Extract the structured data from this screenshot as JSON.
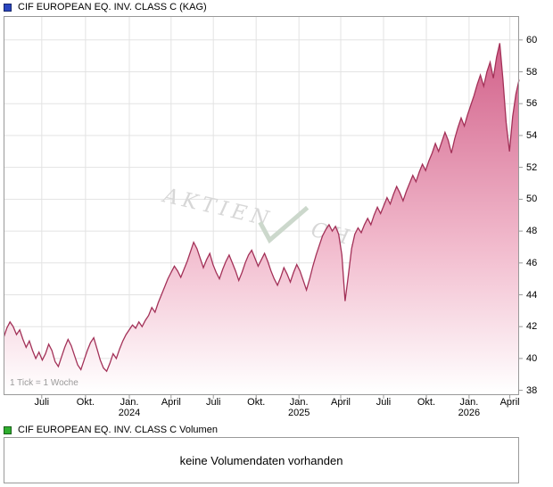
{
  "header": {
    "title": "CIF EUROPEAN EQ. INV. CLASS C (KAG)",
    "marker_color": "#2a46c0"
  },
  "volume": {
    "title": "CIF EUROPEAN EQ. INV. CLASS C Volumen",
    "message": "keine Volumendaten vorhanden",
    "marker_color": "#2fae2f"
  },
  "chart_data": {
    "type": "area",
    "title": "CIF EUROPEAN EQ. INV. CLASS C (KAG)",
    "tick_note": "1 Tick = 1 Woche",
    "x_unit": "week",
    "ylim": [
      37.7,
      61.5
    ],
    "yticks": [
      38,
      40,
      42,
      44,
      46,
      48,
      50,
      52,
      54,
      56,
      58,
      60
    ],
    "x_axis_labels": [
      {
        "label": "Juli",
        "f": 0.074
      },
      {
        "label": "Okt.",
        "f": 0.159
      },
      {
        "label": "Jan.",
        "year": "2024",
        "f": 0.244
      },
      {
        "label": "April",
        "f": 0.325
      },
      {
        "label": "Juli",
        "f": 0.407
      },
      {
        "label": "Okt.",
        "f": 0.49
      },
      {
        "label": "Jan.",
        "year": "2025",
        "f": 0.573
      },
      {
        "label": "April",
        "f": 0.654
      },
      {
        "label": "Juli",
        "f": 0.737
      },
      {
        "label": "Okt.",
        "f": 0.82
      },
      {
        "label": "Jan.",
        "year": "2026",
        "f": 0.903
      },
      {
        "label": "April",
        "f": 0.982
      }
    ],
    "watermark": [
      "AKTIEN",
      "CHECK"
    ],
    "values": [
      41.3,
      41.9,
      42.3,
      42.0,
      41.5,
      41.8,
      41.2,
      40.7,
      41.1,
      40.5,
      40.0,
      40.4,
      39.9,
      40.3,
      40.9,
      40.5,
      39.8,
      39.5,
      40.1,
      40.7,
      41.2,
      40.8,
      40.2,
      39.6,
      39.3,
      39.9,
      40.5,
      41.0,
      41.3,
      40.6,
      39.9,
      39.4,
      39.2,
      39.7,
      40.3,
      40.0,
      40.6,
      41.1,
      41.5,
      41.8,
      42.1,
      41.9,
      42.3,
      42.0,
      42.4,
      42.7,
      43.2,
      42.9,
      43.5,
      44.0,
      44.5,
      45.0,
      45.4,
      45.8,
      45.5,
      45.1,
      45.6,
      46.1,
      46.7,
      47.3,
      46.9,
      46.3,
      45.7,
      46.2,
      46.6,
      45.9,
      45.4,
      45.0,
      45.6,
      46.1,
      46.5,
      46.0,
      45.5,
      44.9,
      45.4,
      46.0,
      46.5,
      46.8,
      46.3,
      45.8,
      46.2,
      46.6,
      46.1,
      45.5,
      45.0,
      44.6,
      45.1,
      45.7,
      45.3,
      44.8,
      45.4,
      45.9,
      45.5,
      44.9,
      44.3,
      45.0,
      45.8,
      46.5,
      47.1,
      47.7,
      48.1,
      48.4,
      48.0,
      48.3,
      47.8,
      46.5,
      43.6,
      45.2,
      46.9,
      47.8,
      48.2,
      47.9,
      48.4,
      48.8,
      48.4,
      49.0,
      49.5,
      49.1,
      49.6,
      50.1,
      49.7,
      50.3,
      50.8,
      50.4,
      49.9,
      50.5,
      51.0,
      51.5,
      51.1,
      51.7,
      52.2,
      51.8,
      52.4,
      52.9,
      53.5,
      53.0,
      53.6,
      54.2,
      53.7,
      52.9,
      53.8,
      54.5,
      55.1,
      54.6,
      55.3,
      55.9,
      56.5,
      57.2,
      57.8,
      57.1,
      58.0,
      58.6,
      57.6,
      58.9,
      59.8,
      57.5,
      54.8,
      53.0,
      55.2,
      56.6,
      57.5
    ],
    "colors": {
      "line": "#a33158",
      "fill_top": "#d05c86",
      "fill_mid": "#f2bcce",
      "grid": "#e3e3e3",
      "axis": "#999999",
      "watermark_text": "#d7d7d7",
      "watermark_check": "#ccd8cc"
    }
  }
}
